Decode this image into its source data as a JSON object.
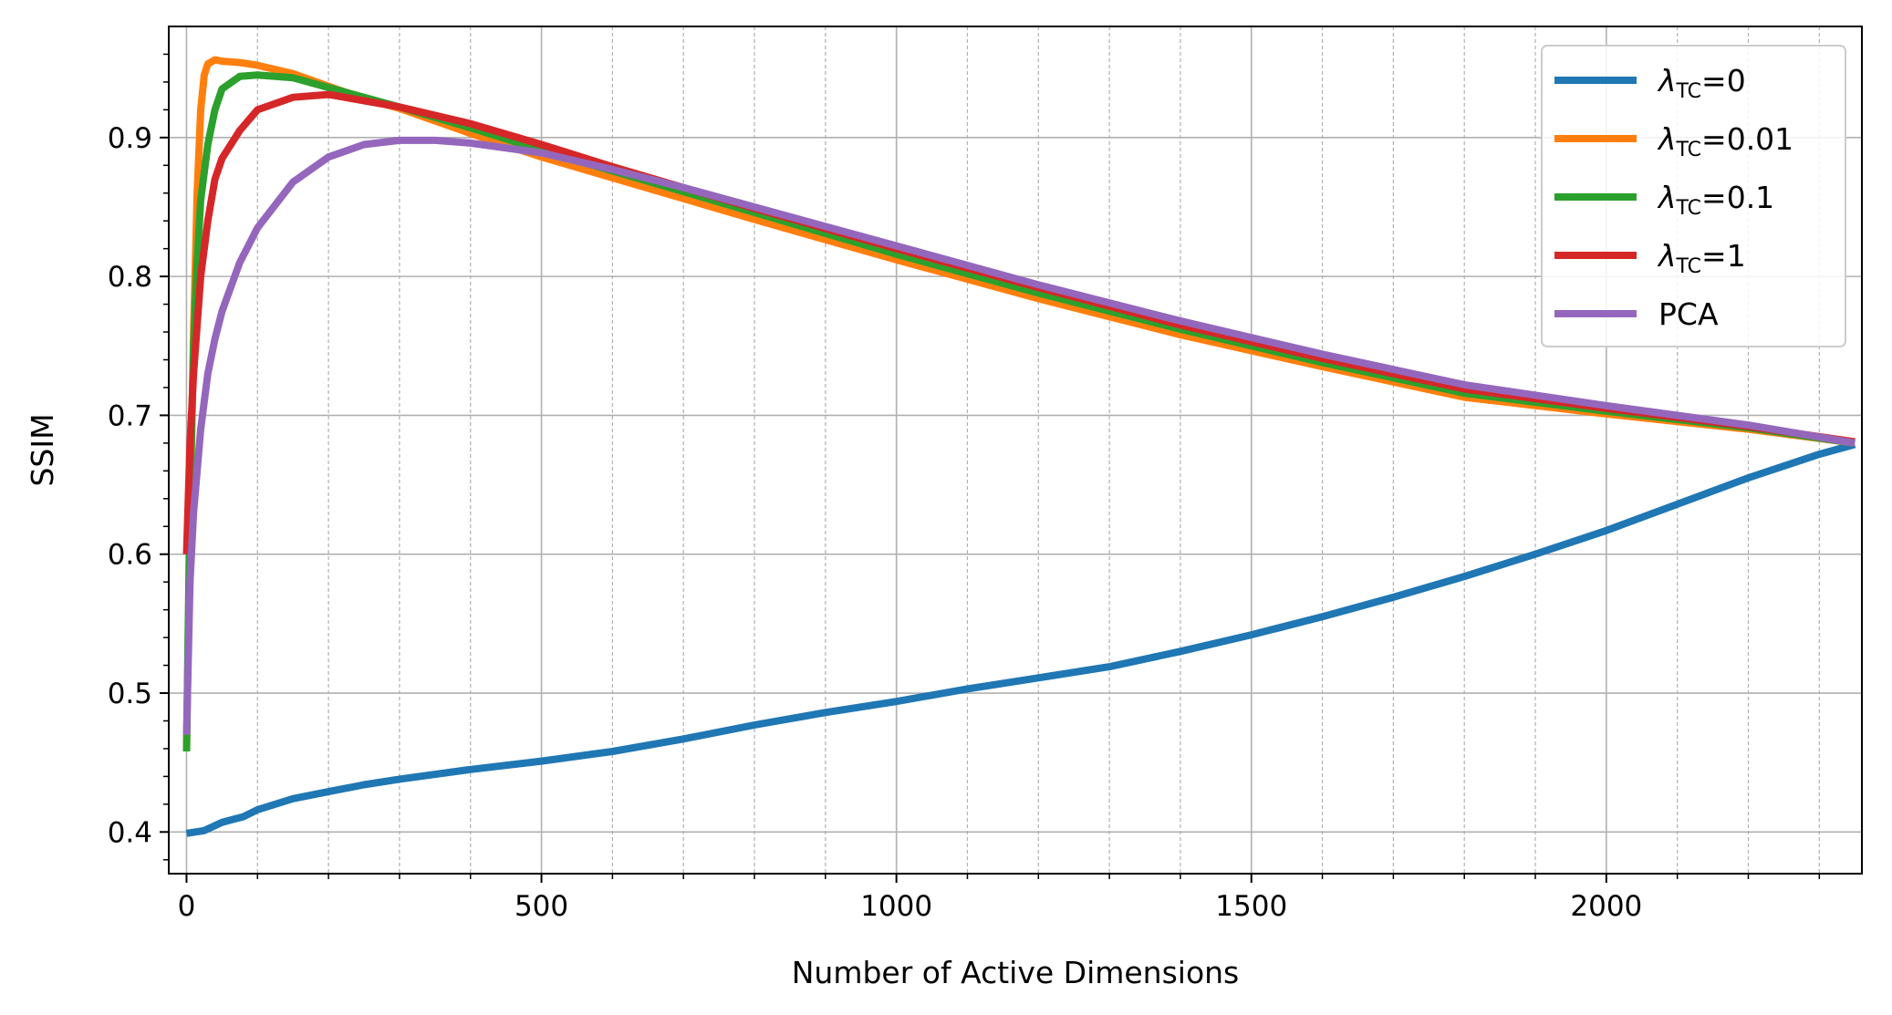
{
  "chart_data": {
    "type": "line",
    "xlabel": "Number of Active Dimensions",
    "ylabel": "SSIM",
    "xlim": [
      -25,
      2360
    ],
    "ylim": [
      0.37,
      0.98
    ],
    "x_ticks": [
      0,
      500,
      1000,
      1500,
      2000
    ],
    "x_tick_labels": [
      "0",
      "500",
      "1000",
      "1500",
      "2000"
    ],
    "y_ticks": [
      0.4,
      0.5,
      0.6,
      0.7,
      0.8,
      0.9
    ],
    "y_tick_labels": [
      "0.4",
      "0.5",
      "0.6",
      "0.7",
      "0.8",
      "0.9"
    ],
    "grid": {
      "major": true,
      "minor_x": true,
      "minor_x_step": 100
    },
    "legend_position": "top-right",
    "series": [
      {
        "name": "λTC=0",
        "name_main": "λ",
        "name_sub": "TC",
        "name_suffix": "=0",
        "color": "#1f77b4",
        "x": [
          0,
          25,
          50,
          80,
          100,
          150,
          200,
          250,
          300,
          400,
          500,
          600,
          700,
          800,
          900,
          1000,
          1100,
          1200,
          1300,
          1400,
          1500,
          1600,
          1700,
          1800,
          1900,
          2000,
          2100,
          2200,
          2300,
          2350
        ],
        "y": [
          0.399,
          0.401,
          0.407,
          0.411,
          0.416,
          0.424,
          0.429,
          0.434,
          0.438,
          0.445,
          0.451,
          0.458,
          0.467,
          0.477,
          0.486,
          0.494,
          0.503,
          0.511,
          0.519,
          0.53,
          0.542,
          0.555,
          0.569,
          0.584,
          0.6,
          0.617,
          0.636,
          0.655,
          0.672,
          0.679
        ]
      },
      {
        "name": "λTC=0.01",
        "name_main": "λ",
        "name_sub": "TC",
        "name_suffix": "=0.01",
        "color": "#ff7f0e",
        "x": [
          0,
          5,
          10,
          15,
          20,
          25,
          30,
          40,
          50,
          75,
          100,
          150,
          200,
          250,
          300,
          400,
          500,
          600,
          700,
          800,
          1000,
          1200,
          1400,
          1600,
          1800,
          2000,
          2200,
          2350
        ],
        "y": [
          0.46,
          0.62,
          0.76,
          0.86,
          0.92,
          0.945,
          0.953,
          0.956,
          0.955,
          0.954,
          0.952,
          0.946,
          0.937,
          0.928,
          0.921,
          0.903,
          0.886,
          0.871,
          0.856,
          0.841,
          0.812,
          0.784,
          0.758,
          0.735,
          0.713,
          0.701,
          0.69,
          0.68
        ]
      },
      {
        "name": "λTC=0.1",
        "name_main": "λ",
        "name_sub": "TC",
        "name_suffix": "=0.1",
        "color": "#2ca02c",
        "x": [
          0,
          5,
          10,
          15,
          20,
          30,
          40,
          50,
          75,
          100,
          150,
          200,
          300,
          400,
          500,
          600,
          700,
          800,
          1000,
          1200,
          1400,
          1600,
          1800,
          2000,
          2200,
          2350
        ],
        "y": [
          0.458,
          0.64,
          0.75,
          0.81,
          0.855,
          0.895,
          0.92,
          0.935,
          0.944,
          0.945,
          0.943,
          0.936,
          0.922,
          0.907,
          0.891,
          0.876,
          0.861,
          0.846,
          0.816,
          0.788,
          0.762,
          0.738,
          0.716,
          0.703,
          0.691,
          0.68
        ]
      },
      {
        "name": "λTC=1",
        "name_main": "λ",
        "name_sub": "TC",
        "name_suffix": "=1",
        "color": "#d62728",
        "x": [
          0,
          5,
          10,
          20,
          30,
          40,
          50,
          75,
          100,
          150,
          200,
          300,
          400,
          500,
          600,
          700,
          800,
          1000,
          1200,
          1400,
          1600,
          1800,
          2000,
          2200,
          2350
        ],
        "y": [
          0.6,
          0.68,
          0.73,
          0.8,
          0.84,
          0.87,
          0.885,
          0.905,
          0.92,
          0.929,
          0.931,
          0.922,
          0.91,
          0.895,
          0.879,
          0.864,
          0.849,
          0.82,
          0.792,
          0.765,
          0.741,
          0.719,
          0.705,
          0.692,
          0.681
        ]
      },
      {
        "name": "PCA",
        "name_main": "PCA",
        "name_sub": "",
        "name_suffix": "",
        "color": "#9467bd",
        "x": [
          0,
          5,
          10,
          20,
          30,
          40,
          50,
          75,
          100,
          150,
          200,
          250,
          300,
          350,
          400,
          500,
          600,
          700,
          800,
          1000,
          1200,
          1400,
          1600,
          1800,
          2000,
          2200,
          2350
        ],
        "y": [
          0.47,
          0.58,
          0.63,
          0.69,
          0.73,
          0.755,
          0.775,
          0.81,
          0.835,
          0.868,
          0.886,
          0.895,
          0.898,
          0.898,
          0.896,
          0.889,
          0.877,
          0.864,
          0.85,
          0.822,
          0.794,
          0.768,
          0.744,
          0.722,
          0.707,
          0.693,
          0.68
        ]
      }
    ]
  }
}
